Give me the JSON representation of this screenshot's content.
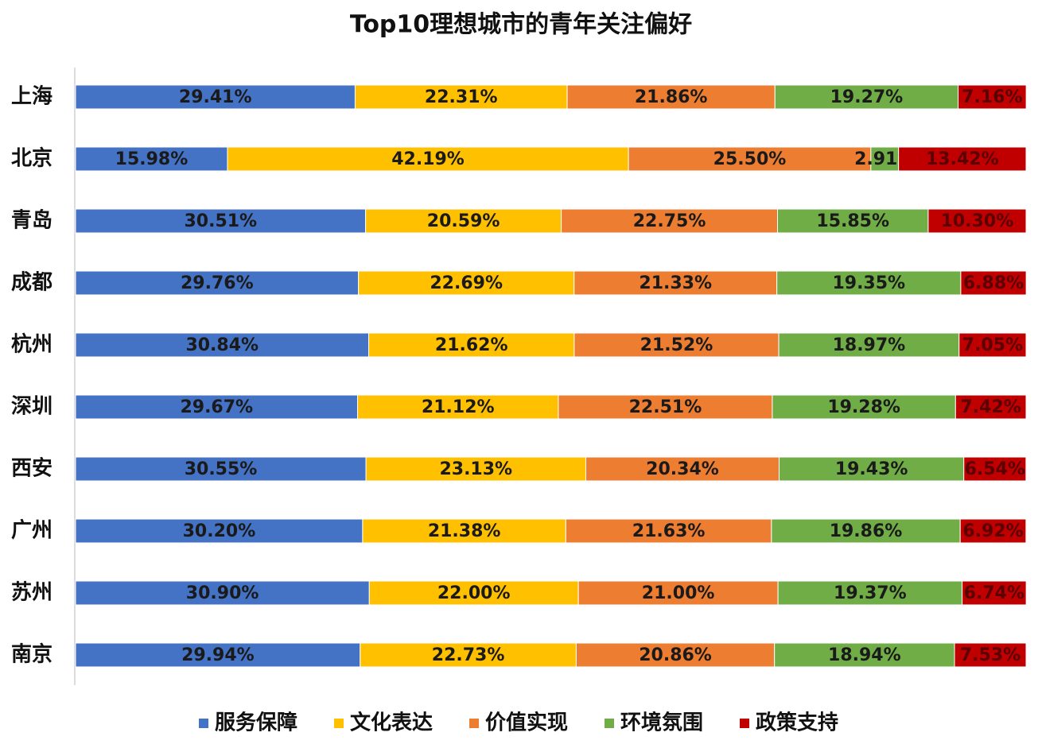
{
  "chart_data": {
    "type": "stacked-bar-horizontal",
    "title": "Top10理想城市的青年关注偏好",
    "categories": [
      "上海",
      "北京",
      "青岛",
      "成都",
      "杭州",
      "深圳",
      "西安",
      "广州",
      "苏州",
      "南京"
    ],
    "xlim": [
      0,
      100
    ],
    "legend": "bottom",
    "series": [
      {
        "name": "服务保障",
        "color": "#4472c4",
        "values": [
          29.41,
          15.98,
          30.51,
          29.76,
          30.84,
          29.67,
          30.55,
          30.2,
          30.9,
          29.94
        ],
        "value_labels": [
          "29.41%",
          "15.98%",
          "30.51%",
          "29.76%",
          "30.84%",
          "29.67%",
          "30.55%",
          "30.20%",
          "30.90%",
          "29.94%"
        ]
      },
      {
        "name": "文化表达",
        "color": "#ffc000",
        "values": [
          22.31,
          42.19,
          20.59,
          22.69,
          21.62,
          21.12,
          23.13,
          21.38,
          22.0,
          22.73
        ],
        "value_labels": [
          "22.31%",
          "42.19%",
          "20.59%",
          "22.69%",
          "21.62%",
          "21.12%",
          "23.13%",
          "21.38%",
          "22.00%",
          "22.73%"
        ]
      },
      {
        "name": "价值实现",
        "color": "#ed7d31",
        "values": [
          21.86,
          25.5,
          22.75,
          21.33,
          21.52,
          22.51,
          20.34,
          21.63,
          21.0,
          20.86
        ],
        "value_labels": [
          "21.86%",
          "25.50%",
          "22.75%",
          "21.33%",
          "21.52%",
          "22.51%",
          "20.34%",
          "21.63%",
          "21.00%",
          "20.86%"
        ]
      },
      {
        "name": "环境氛围",
        "color": "#70ad47",
        "values": [
          19.27,
          2.91,
          15.85,
          19.35,
          18.97,
          19.28,
          19.43,
          19.86,
          19.37,
          18.94
        ],
        "value_labels": [
          "19.27%",
          "2.91%",
          "15.85%",
          "19.35%",
          "18.97%",
          "19.28%",
          "19.43%",
          "19.86%",
          "19.37%",
          "18.94%"
        ]
      },
      {
        "name": "政策支持",
        "color": "#c00000",
        "values": [
          7.16,
          13.42,
          10.3,
          6.88,
          7.05,
          7.42,
          6.54,
          6.92,
          6.74,
          7.53
        ],
        "value_labels": [
          "7.16%",
          "13.42%",
          "10.30%",
          "6.88%",
          "7.05%",
          "7.42%",
          "6.54%",
          "6.92%",
          "6.74%",
          "7.53%"
        ]
      }
    ]
  }
}
